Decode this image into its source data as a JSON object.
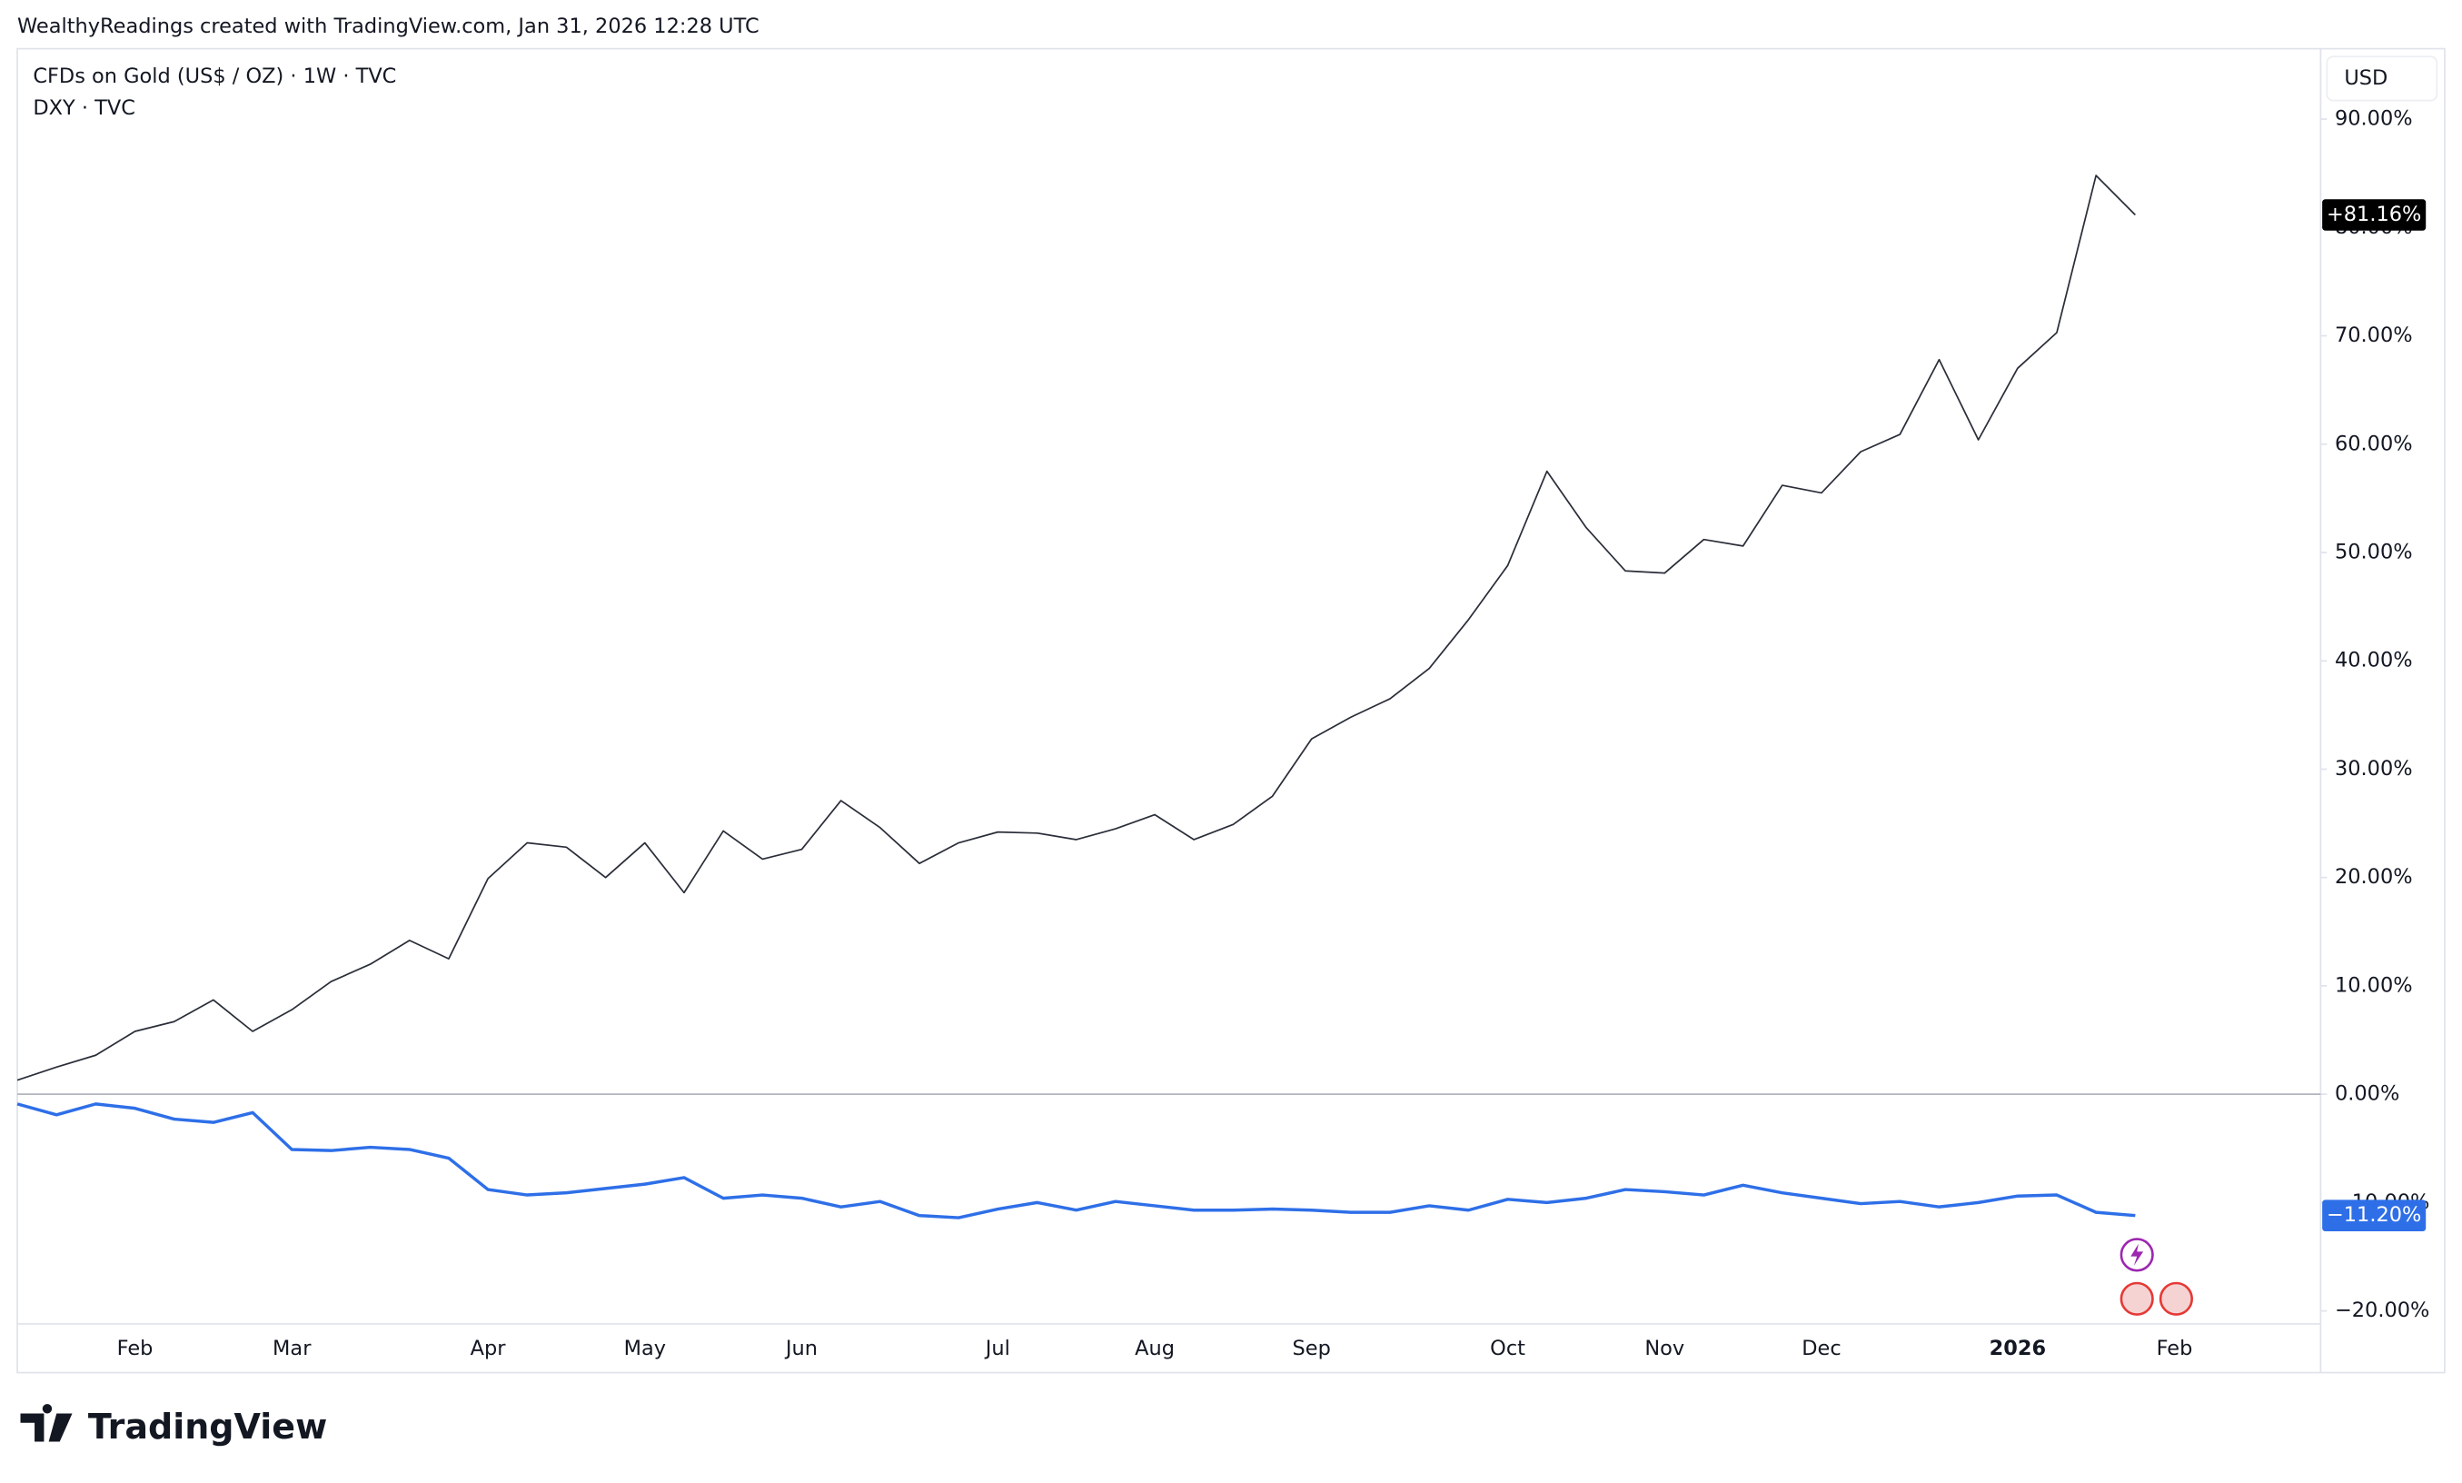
{
  "chart_data": {
    "type": "line",
    "caption": "WealthyReadings created with TradingView.com, Jan 31, 2026 12:28 UTC",
    "currency": "USD",
    "logo": "TradingView",
    "categories": [
      null,
      null,
      null,
      "Feb",
      null,
      null,
      null,
      "Mar",
      null,
      null,
      null,
      null,
      "Apr",
      null,
      null,
      null,
      "May",
      null,
      null,
      null,
      "Jun",
      null,
      null,
      null,
      null,
      "Jul",
      null,
      null,
      null,
      "Aug",
      null,
      null,
      null,
      "Sep",
      null,
      null,
      null,
      null,
      "Oct",
      null,
      null,
      null,
      "Nov",
      null,
      null,
      null,
      "Dec",
      null,
      null,
      null,
      null,
      "2026",
      null,
      null,
      null,
      "Feb",
      null,
      null,
      null
    ],
    "series": [
      {
        "name": "CFDs on Gold (US$ / OZ) · 1W · TVC",
        "color": "#2a2e39",
        "values": [
          1.3,
          2.5,
          3.6,
          5.8,
          6.7,
          8.7,
          5.8,
          7.8,
          10.4,
          12.0,
          14.2,
          12.5,
          19.9,
          23.2,
          22.8,
          20.0,
          23.2,
          18.6,
          24.3,
          21.7,
          22.6,
          27.1,
          24.6,
          21.3,
          23.2,
          24.2,
          24.1,
          23.5,
          24.5,
          25.8,
          23.5,
          24.9,
          27.5,
          32.8,
          34.8,
          36.5,
          39.3,
          43.8,
          48.8,
          57.5,
          52.3,
          48.3,
          48.1,
          51.2,
          50.6,
          56.2,
          55.5,
          59.3,
          60.9,
          67.8,
          60.4,
          67.0,
          70.3,
          84.8,
          81.16,
          null,
          null,
          null,
          null
        ],
        "value_labels": [
          null,
          null,
          null,
          null,
          null,
          null,
          null,
          null,
          null,
          null,
          null,
          null,
          null,
          null,
          null,
          null,
          null,
          null,
          null,
          null,
          null,
          null,
          null,
          null,
          null,
          null,
          null,
          null,
          null,
          null,
          null,
          null,
          null,
          null,
          null,
          null,
          null,
          null,
          null,
          null,
          null,
          null,
          null,
          null,
          null,
          null,
          null,
          null,
          null,
          null,
          null,
          null,
          null,
          null,
          "+81.16%",
          null,
          null,
          null,
          null
        ],
        "tag_color": "#000000"
      },
      {
        "name": "DXY · TVC",
        "color": "#2e6fe8",
        "values": [
          -0.9,
          -1.9,
          -0.9,
          -1.3,
          -2.3,
          -2.6,
          -1.7,
          -5.1,
          -5.2,
          -4.9,
          -5.1,
          -5.9,
          -8.8,
          -9.3,
          -9.1,
          -8.7,
          -8.3,
          -7.7,
          -9.6,
          -9.3,
          -9.6,
          -10.4,
          -9.9,
          -11.2,
          -11.4,
          -10.6,
          -10.0,
          -10.7,
          -9.9,
          -10.3,
          -10.7,
          -10.7,
          -10.6,
          -10.7,
          -10.9,
          -10.9,
          -10.3,
          -10.7,
          -9.7,
          -10.0,
          -9.6,
          -8.8,
          -9.0,
          -9.3,
          -8.4,
          -9.1,
          -9.6,
          -10.1,
          -9.9,
          -10.4,
          -10.0,
          -9.4,
          -9.3,
          -10.9,
          -11.2,
          null,
          null,
          null,
          null
        ],
        "value_labels": [
          null,
          null,
          null,
          null,
          null,
          null,
          null,
          null,
          null,
          null,
          null,
          null,
          null,
          null,
          null,
          null,
          null,
          null,
          null,
          null,
          null,
          null,
          null,
          null,
          null,
          null,
          null,
          null,
          null,
          null,
          null,
          null,
          null,
          null,
          null,
          null,
          null,
          null,
          null,
          null,
          null,
          null,
          null,
          null,
          null,
          null,
          null,
          null,
          null,
          null,
          null,
          null,
          null,
          null,
          "−11.20%",
          null,
          null,
          null,
          null
        ],
        "tag_color": "#2e6fe8"
      }
    ],
    "ylim": [
      -21.2,
      96.5
    ],
    "yticks": [
      {
        "value": -20,
        "label": "−20.00%"
      },
      {
        "value": -10,
        "label": "−10.00%"
      },
      {
        "value": 0,
        "label": "0.00%"
      },
      {
        "value": 10,
        "label": "10.00%"
      },
      {
        "value": 20,
        "label": "20.00%"
      },
      {
        "value": 30,
        "label": "30.00%"
      },
      {
        "value": 40,
        "label": "40.00%"
      },
      {
        "value": 50,
        "label": "50.00%"
      },
      {
        "value": 60,
        "label": "60.00%"
      },
      {
        "value": 70,
        "label": "70.00%"
      },
      {
        "value": 80,
        "label": "80.00%"
      },
      {
        "value": 90,
        "label": "90.00%"
      }
    ],
    "zero_line": true,
    "grid": false
  }
}
